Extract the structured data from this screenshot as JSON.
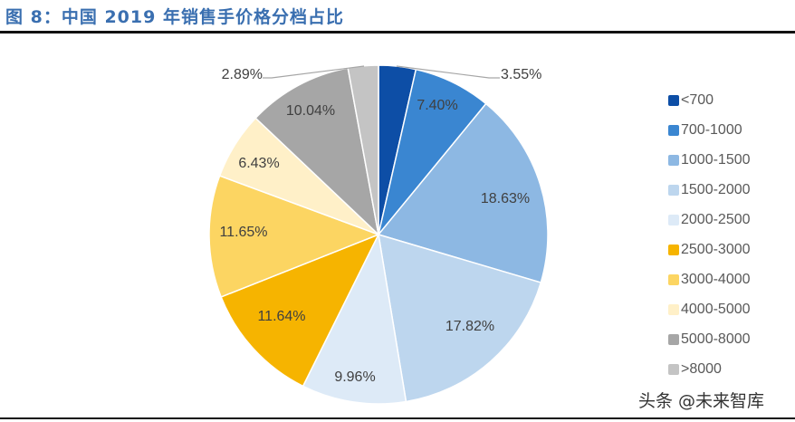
{
  "title": "图 8：中国 2019 年销售手价格分档占比",
  "watermark": "头条 @未来智库",
  "chart_data": {
    "type": "pie",
    "title": "图 8：中国 2019 年销售手价格分档占比",
    "legend_position": "right",
    "categories": [
      "<700",
      "700-1000",
      "1000-1500",
      "1500-2000",
      "2000-2500",
      "2500-3000",
      "3000-4000",
      "4000-5000",
      "5000-8000",
      ">8000"
    ],
    "values": [
      3.55,
      7.4,
      18.63,
      17.82,
      9.96,
      11.64,
      11.65,
      6.43,
      10.04,
      2.89
    ],
    "labels": [
      "3.55%",
      "7.40%",
      "18.63%",
      "17.82%",
      "9.96%",
      "11.64%",
      "11.65%",
      "6.43%",
      "10.04%",
      "2.89%"
    ],
    "colors": [
      "#0d4ea6",
      "#3a86d1",
      "#8db8e3",
      "#bdd6ee",
      "#ddeaf7",
      "#f6b400",
      "#fcd562",
      "#fff0c8",
      "#a6a6a6",
      "#c4c4c4"
    ]
  }
}
